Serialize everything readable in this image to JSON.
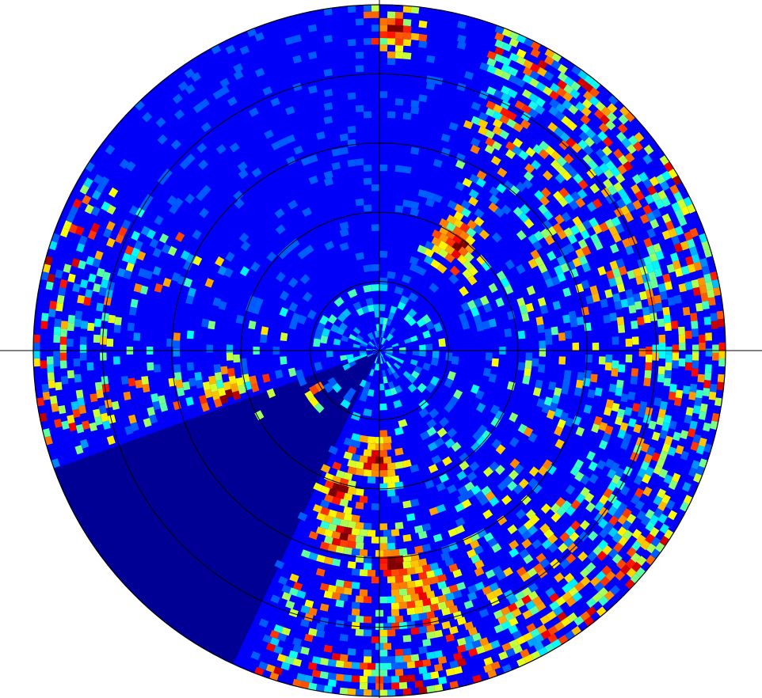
{
  "chart_data": {
    "type": "heatmap",
    "projection": "polar",
    "title": "",
    "xlabel": "",
    "ylabel": "",
    "rings": 5,
    "range_rings": [
      1,
      2,
      3,
      4,
      5
    ],
    "crosshair_angles_deg": [
      0,
      90,
      180,
      270
    ],
    "grid": true,
    "legend": "none",
    "colormap": "jet",
    "background_value": 0.05,
    "blanked_sector_deg": [
      205,
      250
    ],
    "blanked_value": 0.0,
    "colors": {
      "colormap_low": "#00008f",
      "colormap_mid_low": "#0060ff",
      "colormap_mid": "#40ffc0",
      "colormap_mid_high": "#ffd000",
      "colormap_high": "#800000",
      "ring_line": "#000000",
      "page_background": "#ffffff"
    },
    "hotspots": [
      {
        "azimuth_deg": 2,
        "range": 0.93,
        "intensity": 1.0,
        "label_text": ""
      },
      {
        "azimuth_deg": 35,
        "range": 0.38,
        "intensity": 1.0
      },
      {
        "azimuth_deg": 250,
        "range": 0.45,
        "intensity": 1.0
      },
      {
        "azimuth_deg": 240,
        "range": 0.35,
        "intensity": 1.0
      },
      {
        "azimuth_deg": 230,
        "range": 0.28,
        "intensity": 1.0
      },
      {
        "azimuth_deg": 195,
        "range": 0.42,
        "intensity": 1.0
      },
      {
        "azimuth_deg": 190,
        "range": 0.55,
        "intensity": 0.95
      },
      {
        "azimuth_deg": 175,
        "range": 0.62,
        "intensity": 0.9
      },
      {
        "azimuth_deg": 170,
        "range": 0.72,
        "intensity": 0.7
      },
      {
        "azimuth_deg": 180,
        "range": 0.32,
        "intensity": 0.85
      }
    ],
    "clutter_sectors": [
      {
        "from_deg": 20,
        "to_deg": 160,
        "intensity": 0.55
      },
      {
        "from_deg": 160,
        "to_deg": 200,
        "intensity": 0.5
      },
      {
        "from_deg": 250,
        "to_deg": 300,
        "intensity": 0.3
      }
    ]
  }
}
